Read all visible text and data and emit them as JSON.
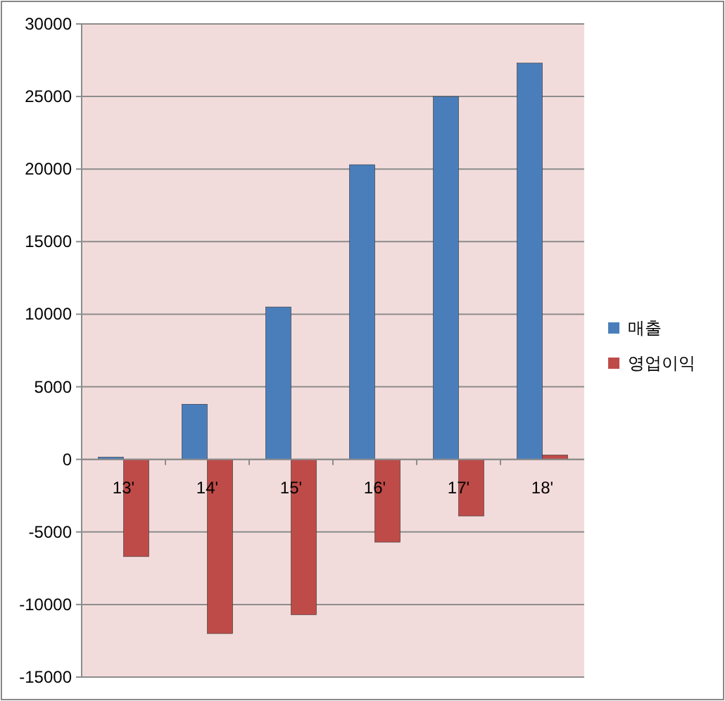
{
  "chart_data": {
    "type": "bar",
    "categories": [
      "13'",
      "14'",
      "15'",
      "16'",
      "17'",
      "18'"
    ],
    "series": [
      {
        "name": "매출",
        "color": "#4a7ebb",
        "values": [
          150,
          3800,
          10500,
          20300,
          25000,
          27300
        ]
      },
      {
        "name": "영업이익",
        "color": "#be4b48",
        "values": [
          -6700,
          -12000,
          -10700,
          -5700,
          -3900,
          300
        ]
      }
    ],
    "ylim": [
      -15000,
      30000
    ],
    "yticks": [
      -15000,
      -10000,
      -5000,
      0,
      5000,
      10000,
      15000,
      20000,
      25000,
      30000
    ],
    "grid": "y",
    "legend": "right"
  }
}
